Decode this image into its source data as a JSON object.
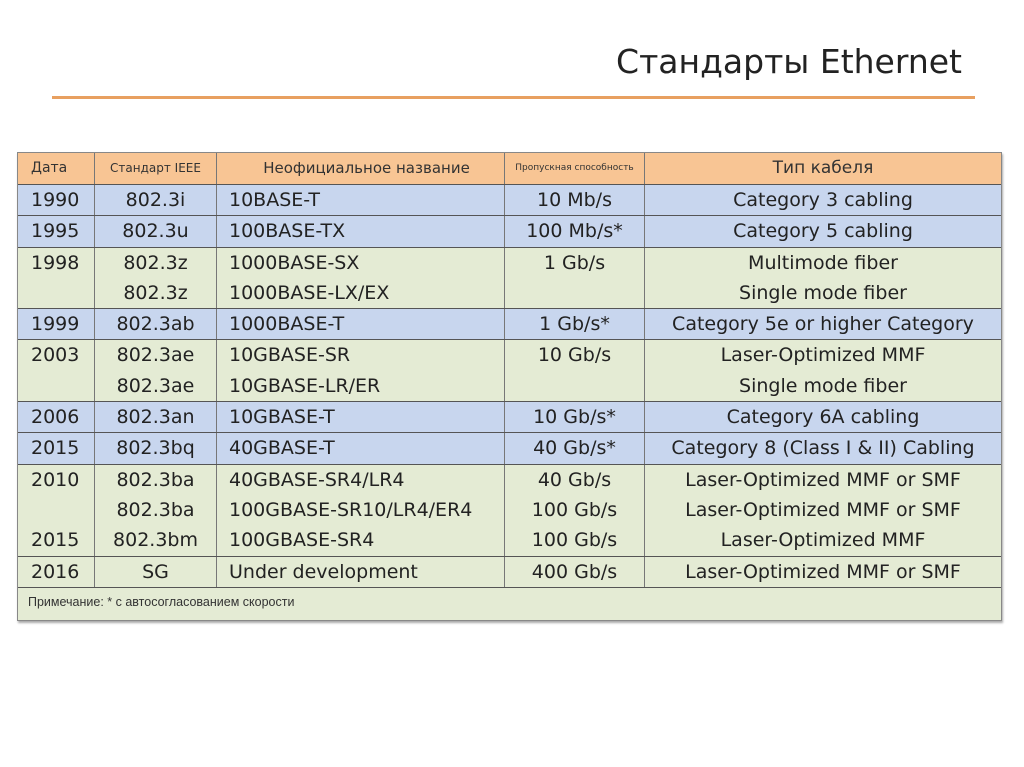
{
  "title": "Стандарты Ethernet",
  "colors": {
    "header": "#f8c594",
    "blue": "#c8d6ee",
    "green": "#e4ebd4",
    "rule": "#e8a060"
  },
  "table": {
    "headers": [
      "Дата",
      "Стандарт IEEE",
      "Неофициальное название",
      "Пропускная способность",
      "Тип кабеля"
    ],
    "groups": [
      {
        "color": "blue",
        "lines": [
          [
            "1990",
            "802.3i",
            "10BASE-T",
            "10 Mb/s",
            "Category 3 cabling"
          ]
        ]
      },
      {
        "color": "blue",
        "lines": [
          [
            "1995",
            "802.3u",
            "100BASE-TX",
            "100 Mb/s*",
            "Category 5 cabling"
          ]
        ]
      },
      {
        "color": "green",
        "lines": [
          [
            "1998",
            "802.3z",
            "1000BASE-SX",
            "1 Gb/s",
            "Multimode fiber"
          ],
          [
            "",
            "802.3z",
            "1000BASE-LX/EX",
            "",
            "Single mode fiber"
          ]
        ]
      },
      {
        "color": "blue",
        "lines": [
          [
            "1999",
            "802.3ab",
            "1000BASE-T",
            "1 Gb/s*",
            "Category 5e or higher Category"
          ]
        ]
      },
      {
        "color": "green",
        "lines": [
          [
            "2003",
            "802.3ae",
            "10GBASE-SR",
            "10 Gb/s",
            "Laser-Optimized MMF"
          ],
          [
            "",
            "802.3ae",
            "10GBASE-LR/ER",
            "",
            "Single mode fiber"
          ]
        ]
      },
      {
        "color": "blue",
        "lines": [
          [
            "2006",
            "802.3an",
            "10GBASE-T",
            "10 Gb/s*",
            "Category 6A cabling"
          ]
        ]
      },
      {
        "color": "blue",
        "lines": [
          [
            "2015",
            "802.3bq",
            "40GBASE-T",
            "40 Gb/s*",
            "Category 8 (Class I & II) Cabling"
          ]
        ]
      },
      {
        "color": "green",
        "lines": [
          [
            "2010",
            "802.3ba",
            "40GBASE-SR4/LR4",
            "40 Gb/s",
            "Laser-Optimized MMF or SMF"
          ],
          [
            "",
            "802.3ba",
            "100GBASE-SR10/LR4/ER4",
            "100 Gb/s",
            "Laser-Optimized MMF or SMF"
          ],
          [
            "2015",
            "802.3bm",
            "100GBASE-SR4",
            "100 Gb/s",
            "Laser-Optimized MMF"
          ]
        ]
      },
      {
        "color": "green",
        "lines": [
          [
            "2016",
            "SG",
            "Under development",
            "400 Gb/s",
            "Laser-Optimized MMF or SMF"
          ]
        ]
      }
    ],
    "note": "Примечание: * с автосогласованием скорости"
  }
}
